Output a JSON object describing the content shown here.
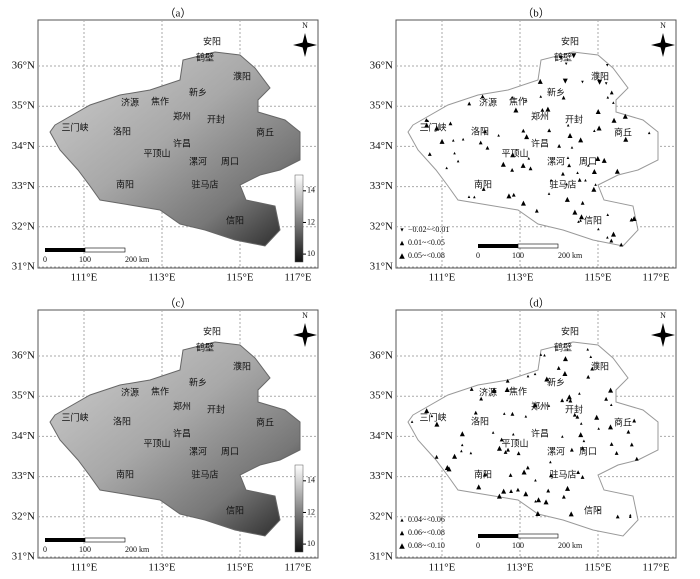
{
  "panels": [
    {
      "label": "（a）"
    },
    {
      "label": "（b）",
      "legend": [
        "−0.02~<0.01",
        "0.01~<0.05",
        "0.05~<0.08"
      ]
    },
    {
      "label": "（c）"
    },
    {
      "label": "（d）",
      "legend": [
        "0.04~<0.06",
        "0.06~<0.08",
        "0.08~<0.10"
      ]
    }
  ],
  "lat_ticks": [
    "31°N",
    "32°N",
    "33°N",
    "34°N",
    "35°N",
    "36°N"
  ],
  "lon_ticks": [
    "111°E",
    "113°E",
    "115°E",
    "117°E"
  ],
  "cities": [
    "安阳",
    "鹤壁",
    "濮阳",
    "新乡",
    "济源",
    "焦作",
    "三门峡",
    "洛阳",
    "郑州",
    "开封",
    "商丘",
    "许昌",
    "平顶山",
    "漯河",
    "周口",
    "南阳",
    "驻马店",
    "信阳"
  ],
  "scale_labels": [
    "0",
    "100",
    "200 km"
  ],
  "north": "N",
  "colorbar_ticks": [
    10,
    12,
    14
  ]
}
